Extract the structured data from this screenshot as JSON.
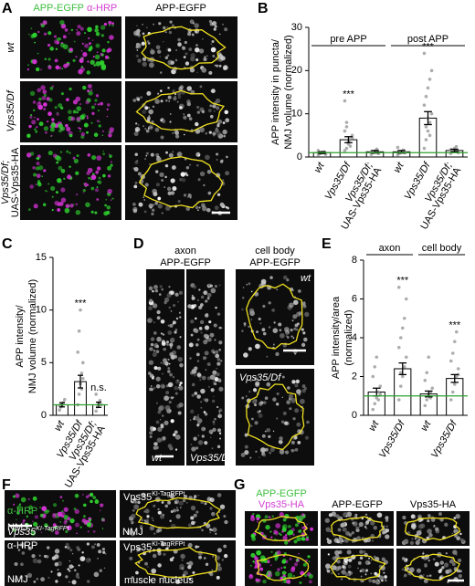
{
  "panels": {
    "A": {
      "letter": "A",
      "header_1": "APP-EGFP",
      "header_2": "α-HRP",
      "header_3": "APP-EGFP",
      "rows": [
        [
          "wt"
        ],
        [
          "Vps35/Df"
        ],
        [
          "Vps35/Df;",
          "UAS-Vps35-HA"
        ]
      ]
    },
    "D": {
      "letter": "D",
      "axon_header": [
        "axon",
        "APP-EGFP"
      ],
      "cell_body_header": [
        "cell body",
        "APP-EGFP"
      ],
      "labels": [
        "wt",
        "Vps35/Df",
        "wt",
        "Vps35/Df"
      ]
    },
    "F": {
      "letter": "F",
      "protein": "Vps35",
      "tag": "KI-TagRFPt",
      "hrp": "α-HRP",
      "nmj": "NMJ",
      "nucleus": "muscle nucleus"
    },
    "G": {
      "letter": "G",
      "header_1": "APP-EGFP",
      "header_2": "Vps35-HA",
      "header_3": "APP-EGFP",
      "header_4": "Vps35-HA"
    }
  },
  "chart_data": [
    {
      "type": "bar",
      "panel": "B",
      "y_label": [
        "APP intensity in puncta/",
        "NMJ volume (normalized)"
      ],
      "ylim": [
        0,
        30
      ],
      "yticks": [
        0,
        10,
        20,
        30
      ],
      "hline": 1,
      "groups": [
        {
          "name": "pre APP",
          "categories": [
            [
              "wt"
            ],
            [
              "Vps35/Df"
            ],
            [
              "Vps35/Df;",
              "UAS-Vps35-HA"
            ]
          ],
          "values": [
            1,
            4,
            1.2
          ],
          "errors": [
            0.2,
            0.7,
            0.3
          ],
          "significance": [
            null,
            "***",
            null
          ],
          "points": [
            [
              0.5,
              0.8,
              1,
              1.2,
              0.6,
              1.5,
              0.9,
              1.1
            ],
            [
              1.5,
              2,
              3,
              4,
              5,
              6,
              7,
              3.5,
              2.5,
              4.5,
              13,
              8
            ],
            [
              0.6,
              1,
              1.4,
              1.8,
              0.8,
              1.2
            ]
          ]
        },
        {
          "name": "post APP",
          "categories": [
            [
              "wt"
            ],
            [
              "Vps35/Df"
            ],
            [
              "Vps35/Df;",
              "UAS-Vps35-HA"
            ]
          ],
          "values": [
            1.2,
            9,
            1.5
          ],
          "errors": [
            0.3,
            1.5,
            0.3
          ],
          "significance": [
            null,
            "***",
            null
          ],
          "points": [
            [
              0.5,
              0.9,
              1.3,
              1.6,
              1,
              2.2
            ],
            [
              2,
              4,
              6,
              8,
              10,
              12,
              14,
              16,
              18,
              20,
              24,
              7,
              9,
              5
            ],
            [
              0.8,
              1.4,
              2,
              2.4,
              1,
              1.7
            ]
          ]
        }
      ]
    },
    {
      "type": "bar",
      "panel": "C",
      "y_label": [
        "APP intensity/",
        "NMJ volume (normalized)"
      ],
      "ylim": [
        0,
        15
      ],
      "yticks": [
        0,
        5,
        10,
        15
      ],
      "hline": 1,
      "groups": [
        {
          "categories": [
            [
              "wt"
            ],
            [
              "Vps35/Df"
            ],
            [
              "Vps35/Df;",
              "UAS-Vps35-HA"
            ]
          ],
          "values": [
            1,
            3.2,
            1
          ],
          "errors": [
            0.2,
            0.6,
            0.25
          ],
          "significance": [
            null,
            "***",
            "n.s."
          ],
          "points": [
            [
              0.5,
              0.8,
              1,
              1.2,
              1.5,
              0.9,
              1.1
            ],
            [
              1,
              2,
              3,
              4,
              5,
              6,
              8,
              10,
              2.5,
              3.5
            ],
            [
              0.4,
              0.8,
              1.1,
              1.4,
              1,
              2
            ]
          ]
        }
      ]
    },
    {
      "type": "bar",
      "panel": "E",
      "y_label": [
        "APP intensity/area",
        "(normalized)"
      ],
      "ylim": [
        0,
        8
      ],
      "yticks": [
        0,
        2,
        4,
        6,
        8
      ],
      "hline": 1,
      "groups": [
        {
          "name": "axon",
          "categories": [
            [
              "wt"
            ],
            [
              "Vps35/Df"
            ]
          ],
          "values": [
            1.2,
            2.4
          ],
          "errors": [
            0.2,
            0.3
          ],
          "significance": [
            null,
            "***"
          ],
          "points": [
            [
              0.3,
              0.6,
              0.9,
              1.2,
              1.5,
              2,
              2.5,
              3,
              0.8,
              1.1
            ],
            [
              0.8,
              1.5,
              2,
              2.5,
              3,
              3.5,
              4,
              4.5,
              5,
              6,
              6.6,
              2.2
            ]
          ]
        },
        {
          "name": "cell body",
          "categories": [
            [
              "wt"
            ],
            [
              "Vps35/Df"
            ]
          ],
          "values": [
            1.1,
            1.9
          ],
          "errors": [
            0.15,
            0.2
          ],
          "significance": [
            null,
            "***"
          ],
          "points": [
            [
              0.5,
              0.8,
              1,
              1.2,
              1.4,
              1.8,
              2.2,
              3,
              0.9
            ],
            [
              0.8,
              1.2,
              1.6,
              2,
              2.4,
              2.8,
              3.2,
              3.8,
              4.3,
              2.1
            ]
          ]
        }
      ]
    }
  ]
}
